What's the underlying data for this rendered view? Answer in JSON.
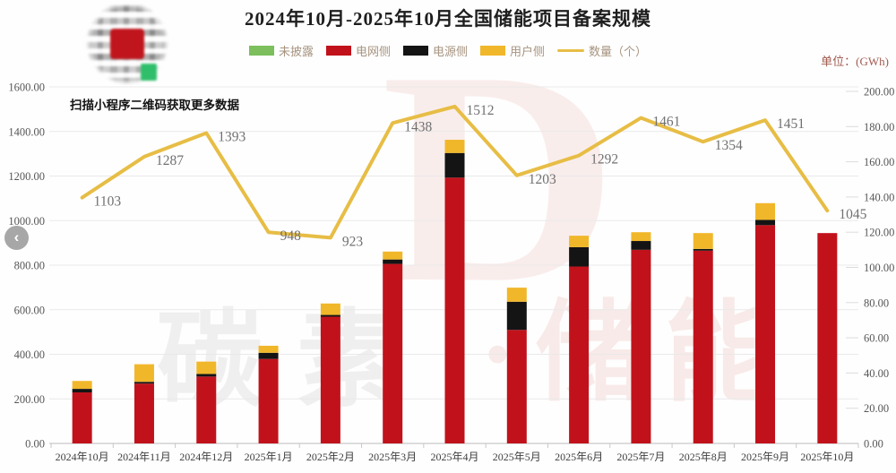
{
  "header": {
    "title": "2024年10月-2025年10月全国储能项目备案规模",
    "unit_label": "单位：(GWh)"
  },
  "qr_block": {
    "caption": "扫描小程序二维码获取更多数据"
  },
  "back_button": {
    "glyph": "‹"
  },
  "watermark": {
    "big_letter": "D",
    "gray_text": "碳素",
    "red_text": "·储能"
  },
  "legend": {
    "items": [
      {
        "label": "未披露",
        "color": "#7cbf5c",
        "type": "swatch"
      },
      {
        "label": "电网侧",
        "color": "#c1121b",
        "type": "swatch"
      },
      {
        "label": "电源侧",
        "color": "#141414",
        "type": "swatch"
      },
      {
        "label": "用户侧",
        "color": "#f1b72a",
        "type": "swatch"
      },
      {
        "label": "数量（个）",
        "color": "#e7bd45",
        "type": "line"
      }
    ]
  },
  "chart_data": {
    "type": "bar",
    "subtype": "stacked-bars-with-line",
    "title": "2024年10月-2025年10月全国储能项目备案规模",
    "unit": "GWh",
    "categories": [
      "2024年10月",
      "2024年11月",
      "2024年12月",
      "2025年1月",
      "2025年2月",
      "2025年3月",
      "2025年4月",
      "2025年5月",
      "2025年6月",
      "2025年7月",
      "2025年8月",
      "2025年9月",
      "2025年10月"
    ],
    "series": [
      {
        "name": "未披露",
        "color": "#7cbf5c",
        "axis": "right",
        "values": [
          0,
          0,
          0,
          0,
          0,
          0,
          0,
          0,
          0,
          0,
          0,
          0,
          0
        ]
      },
      {
        "name": "电网侧",
        "color": "#c1121b",
        "axis": "right",
        "values": [
          29.0,
          34.0,
          38.0,
          48.0,
          72.0,
          102.0,
          151.0,
          64.5,
          100.5,
          110.0,
          109.5,
          124.0,
          119.5
        ]
      },
      {
        "name": "电源侧",
        "color": "#141414",
        "axis": "right",
        "values": [
          2.0,
          1.0,
          1.5,
          3.5,
          1.0,
          2.5,
          14.0,
          16.0,
          11.0,
          5.0,
          1.0,
          3.0,
          0
        ]
      },
      {
        "name": "用户侧",
        "color": "#f1b72a",
        "axis": "right",
        "values": [
          4.5,
          10.0,
          7.0,
          4.0,
          6.5,
          4.5,
          7.5,
          8.0,
          6.5,
          5.0,
          9.0,
          9.5,
          0
        ]
      }
    ],
    "line_series": {
      "name": "数量（个）",
      "color": "#e7bd45",
      "width": 4,
      "axis": "left",
      "values": [
        1103,
        1287,
        1393,
        948,
        923,
        1438,
        1512,
        1203,
        1292,
        1461,
        1354,
        1451,
        1045
      ],
      "labels": [
        "1103",
        "1287",
        "1393",
        "948",
        "923",
        "1438",
        "1512",
        "1203",
        "1292",
        "1461",
        "1354",
        "1451",
        "1045"
      ]
    },
    "left_axis": {
      "min": 0,
      "max": 1600,
      "step": 200,
      "tick_labels": [
        "0.00",
        "200.00",
        "400.00",
        "600.00",
        "800.00",
        "1000.00",
        "1200.00",
        "1400.00",
        "1600.00"
      ]
    },
    "right_axis": {
      "min": 0,
      "max": 200,
      "step": 20,
      "tick_labels": [
        "0.00",
        "20.00",
        "40.00",
        "60.00",
        "80.00",
        "100.00",
        "120.00",
        "140.00",
        "160.00",
        "180.00",
        "200.00"
      ]
    },
    "grid": "horizontal-on",
    "legend_position": "top-center"
  }
}
